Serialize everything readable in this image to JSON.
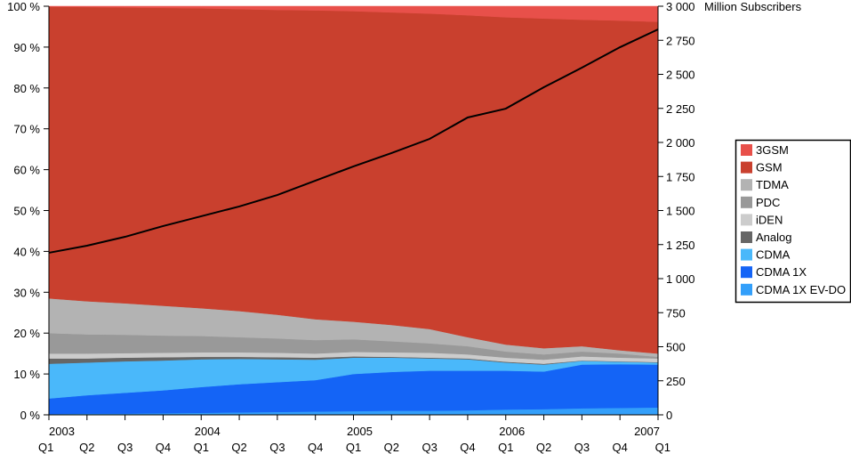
{
  "chart_data": {
    "type": "area",
    "stacking": "percent",
    "categories": [
      "Q1",
      "Q2",
      "Q3",
      "Q4",
      "Q1",
      "Q2",
      "Q3",
      "Q4",
      "Q1",
      "Q2",
      "Q3",
      "Q4",
      "Q1",
      "Q2",
      "Q3",
      "Q4",
      "Q1"
    ],
    "year_labels": [
      {
        "index": 0,
        "label": "2003"
      },
      {
        "index": 4,
        "label": "2004"
      },
      {
        "index": 8,
        "label": "2005"
      },
      {
        "index": 12,
        "label": "2006"
      },
      {
        "index": 16,
        "label": "2007"
      }
    ],
    "left_axis": {
      "ylim": [
        0,
        100
      ],
      "ticks": [
        "0 %",
        "10 %",
        "20 %",
        "30 %",
        "40 %",
        "50 %",
        "60 %",
        "70 %",
        "80 %",
        "90 %",
        "100 %"
      ]
    },
    "right_axis": {
      "ylabel": "Million Subscribers",
      "ylim": [
        0,
        3000
      ],
      "ticks": [
        "0",
        "250",
        "500",
        "750",
        "1 000",
        "1 250",
        "1 500",
        "1 750",
        "2 000",
        "2 250",
        "2 500",
        "2 750",
        "3 000"
      ]
    },
    "legend_position": "right",
    "series": [
      {
        "name": "CDMA 1X EV-DO",
        "color": "#339ffa",
        "values": [
          0.2,
          0.3,
          0.3,
          0.4,
          0.5,
          0.6,
          0.7,
          0.8,
          0.9,
          1.0,
          1.0,
          1.1,
          1.3,
          1.4,
          1.6,
          1.7,
          1.8
        ]
      },
      {
        "name": "CDMA 1X",
        "color": "#1464f6",
        "values": [
          3.8,
          4.5,
          5.1,
          5.6,
          6.3,
          6.9,
          7.3,
          7.7,
          9.1,
          9.5,
          9.8,
          9.7,
          9.5,
          9.2,
          10.7,
          10.7,
          10.5
        ]
      },
      {
        "name": "CDMA",
        "color": "#4ab8fa",
        "values": [
          8.5,
          8.0,
          7.7,
          7.3,
          6.8,
          6.2,
          5.6,
          5.0,
          4.0,
          3.5,
          3.0,
          2.8,
          2.0,
          1.7,
          0.9,
          0.6,
          0.5
        ]
      },
      {
        "name": "Analog",
        "color": "#666666",
        "values": [
          1.3,
          1.0,
          0.9,
          0.8,
          0.6,
          0.5,
          0.5,
          0.5,
          0.3,
          0.2,
          0.2,
          0.2,
          0.2,
          0.2,
          0.1,
          0.1,
          0.1
        ]
      },
      {
        "name": "iDEN",
        "color": "#cccccc",
        "values": [
          1.2,
          1.2,
          1.1,
          1.1,
          1.1,
          1.1,
          1.1,
          1.0,
          1.1,
          1.1,
          1.2,
          1.0,
          1.0,
          1.0,
          1.0,
          0.9,
          0.9
        ]
      },
      {
        "name": "PDC",
        "color": "#999999",
        "values": [
          5.0,
          4.7,
          4.5,
          4.2,
          4.0,
          3.7,
          3.5,
          3.3,
          3.1,
          2.7,
          2.3,
          2.0,
          1.5,
          1.3,
          1.2,
          1.0,
          0.4
        ]
      },
      {
        "name": "TDMA",
        "color": "#b3b3b3",
        "values": [
          8.5,
          8.1,
          7.7,
          7.3,
          6.8,
          6.4,
          5.8,
          5.1,
          4.3,
          4.0,
          3.5,
          2.2,
          1.7,
          1.5,
          1.3,
          0.8,
          0.8
        ]
      },
      {
        "name": "GSM",
        "color": "#c9402e",
        "values": [
          71.4,
          72.0,
          72.4,
          72.9,
          73.4,
          73.9,
          74.6,
          75.6,
          76.0,
          76.5,
          77.2,
          78.8,
          80.1,
          80.7,
          79.9,
          80.7,
          81.2
        ]
      },
      {
        "name": "3GSM",
        "color": "#e8504a",
        "values": [
          0.1,
          0.2,
          0.3,
          0.4,
          0.5,
          0.7,
          0.9,
          1.0,
          1.2,
          1.5,
          1.8,
          2.2,
          2.7,
          3.0,
          3.3,
          3.5,
          3.8
        ]
      }
    ],
    "line": {
      "axis": "right",
      "color": "#000000",
      "values": [
        1190,
        1242,
        1307,
        1386,
        1458,
        1530,
        1614,
        1719,
        1824,
        1922,
        2026,
        2183,
        2248,
        2405,
        2549,
        2699,
        2830
      ]
    },
    "legend_order": [
      "3GSM",
      "GSM",
      "TDMA",
      "PDC",
      "iDEN",
      "Analog",
      "CDMA",
      "CDMA 1X",
      "CDMA 1X EV-DO"
    ]
  }
}
